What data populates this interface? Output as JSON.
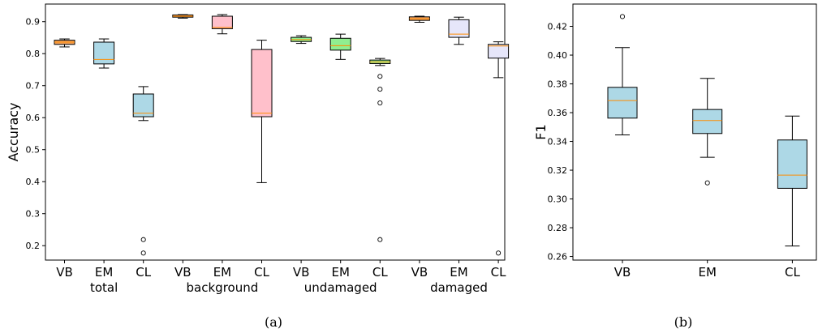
{
  "chart_data": [
    {
      "type": "box",
      "panel_label": "(a)",
      "ylabel": "Accuracy",
      "ylim": [
        0.155,
        0.955
      ],
      "yticks": [
        0.2,
        0.3,
        0.4,
        0.5,
        0.6,
        0.7,
        0.8,
        0.9
      ],
      "ytick_labels": [
        "0.2",
        "0.3",
        "0.4",
        "0.5",
        "0.6",
        "0.7",
        "0.8",
        "0.9"
      ],
      "group_labels": [
        "total",
        "background",
        "undamaged",
        "damaged"
      ],
      "categories": [
        "VB",
        "EM",
        "CL",
        "VB",
        "EM",
        "CL",
        "VB",
        "EM",
        "CL",
        "VB",
        "EM",
        "CL"
      ],
      "boxes": [
        {
          "group": "total",
          "category": "VB",
          "whislo": 0.821,
          "q1": 0.829,
          "med": 0.836,
          "q3": 0.842,
          "whishi": 0.846,
          "fliers": [],
          "color": "#f4a460"
        },
        {
          "group": "total",
          "category": "EM",
          "whislo": 0.755,
          "q1": 0.768,
          "med": 0.782,
          "q3": 0.836,
          "whishi": 0.846,
          "fliers": [],
          "color": "#add8e6"
        },
        {
          "group": "total",
          "category": "CL",
          "whislo": 0.591,
          "q1": 0.603,
          "med": 0.614,
          "q3": 0.674,
          "whishi": 0.697,
          "fliers": [
            0.219,
            0.177
          ],
          "color": "#add8e6"
        },
        {
          "group": "background",
          "category": "VB",
          "whislo": 0.911,
          "q1": 0.914,
          "med": 0.917,
          "q3": 0.921,
          "whishi": 0.922,
          "fliers": [],
          "color": "#f4a460"
        },
        {
          "group": "background",
          "category": "EM",
          "whislo": 0.862,
          "q1": 0.878,
          "med": 0.882,
          "q3": 0.917,
          "whishi": 0.922,
          "fliers": [],
          "color": "#ffc0cb"
        },
        {
          "group": "background",
          "category": "CL",
          "whislo": 0.397,
          "q1": 0.603,
          "med": 0.614,
          "q3": 0.813,
          "whishi": 0.842,
          "fliers": [],
          "color": "#ffc0cb"
        },
        {
          "group": "undamaged",
          "category": "VB",
          "whislo": 0.832,
          "q1": 0.838,
          "med": 0.844,
          "q3": 0.851,
          "whishi": 0.856,
          "fliers": [],
          "color": "#90ee90"
        },
        {
          "group": "undamaged",
          "category": "EM",
          "whislo": 0.782,
          "q1": 0.811,
          "med": 0.825,
          "q3": 0.848,
          "whishi": 0.861,
          "fliers": [],
          "color": "#90ee90"
        },
        {
          "group": "undamaged",
          "category": "CL",
          "whislo": 0.763,
          "q1": 0.769,
          "med": 0.774,
          "q3": 0.78,
          "whishi": 0.785,
          "fliers": [
            0.729,
            0.689,
            0.646,
            0.219
          ],
          "color": "#90ee90"
        },
        {
          "group": "damaged",
          "category": "VB",
          "whislo": 0.898,
          "q1": 0.904,
          "med": 0.909,
          "q3": 0.915,
          "whishi": 0.917,
          "fliers": [],
          "color": "#f4a460"
        },
        {
          "group": "damaged",
          "category": "EM",
          "whislo": 0.829,
          "q1": 0.851,
          "med": 0.861,
          "q3": 0.906,
          "whishi": 0.914,
          "fliers": [],
          "color": "#e6e6fa"
        },
        {
          "group": "damaged",
          "category": "CL",
          "whislo": 0.725,
          "q1": 0.786,
          "med": 0.824,
          "q3": 0.829,
          "whishi": 0.837,
          "fliers": [
            0.177
          ],
          "color": "#e6e6fa"
        }
      ]
    },
    {
      "type": "box",
      "panel_label": "(b)",
      "ylabel": "F1",
      "ylim": [
        0.2575,
        0.4355
      ],
      "yticks": [
        0.26,
        0.28,
        0.3,
        0.32,
        0.34,
        0.36,
        0.38,
        0.4,
        0.42
      ],
      "ytick_labels": [
        "0.26",
        "0.28",
        "0.30",
        "0.32",
        "0.34",
        "0.36",
        "0.38",
        "0.40",
        "0.42"
      ],
      "categories": [
        "VB",
        "EM",
        "CL"
      ],
      "boxes": [
        {
          "category": "VB",
          "whislo": 0.3445,
          "q1": 0.3562,
          "med": 0.3684,
          "q3": 0.3776,
          "whishi": 0.4052,
          "fliers": [
            0.4268
          ],
          "color": "#add8e6"
        },
        {
          "category": "EM",
          "whislo": 0.329,
          "q1": 0.3455,
          "med": 0.3545,
          "q3": 0.3622,
          "whishi": 0.3838,
          "fliers": [
            0.3112
          ],
          "color": "#add8e6"
        },
        {
          "category": "CL",
          "whislo": 0.2673,
          "q1": 0.3074,
          "med": 0.3166,
          "q3": 0.341,
          "whishi": 0.3576,
          "fliers": [],
          "color": "#add8e6"
        }
      ]
    }
  ],
  "style": {
    "median_color": "#ff8c00",
    "line_color": "#000000"
  }
}
